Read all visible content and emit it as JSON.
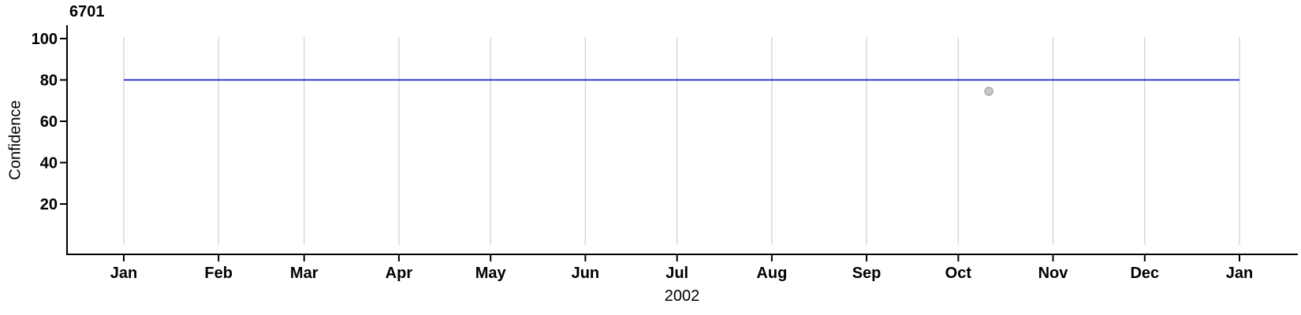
{
  "figure": {
    "title": "6701",
    "xlabel": "2002",
    "ylabel": "Confidence"
  },
  "chart_data": {
    "type": "line",
    "title": "6701",
    "xlabel": "2002",
    "ylabel": "Confidence",
    "x_axis": {
      "unit": "month",
      "year": "2002",
      "tick_labels": [
        "Jan",
        "Feb",
        "Mar",
        "Apr",
        "May",
        "Jun",
        "Jul",
        "Aug",
        "Sep",
        "Oct",
        "Nov",
        "Dec",
        "Jan"
      ],
      "tick_days": [
        0,
        31,
        59,
        90,
        120,
        151,
        181,
        212,
        243,
        273,
        304,
        334,
        365
      ]
    },
    "y_axis": {
      "label": "Confidence",
      "ticks": [
        20,
        40,
        60,
        80,
        100
      ],
      "ylim": [
        -4,
        106
      ]
    },
    "grid": {
      "show": true,
      "color": "#D9D9D9"
    },
    "colors": {
      "axis": "#000000",
      "text": "#000000"
    },
    "legend": {
      "show": false
    },
    "series": [
      {
        "name": "confidence-model-line",
        "type": "line",
        "color": "#0000CC",
        "x_days": [
          0,
          365
        ],
        "values": [
          80,
          80
        ]
      },
      {
        "name": "observed-confidence-point",
        "type": "scatter",
        "fill": "#C9C9C9",
        "stroke": "#A6A6A6",
        "x_days": [
          283
        ],
        "values": [
          74.5
        ]
      }
    ]
  }
}
